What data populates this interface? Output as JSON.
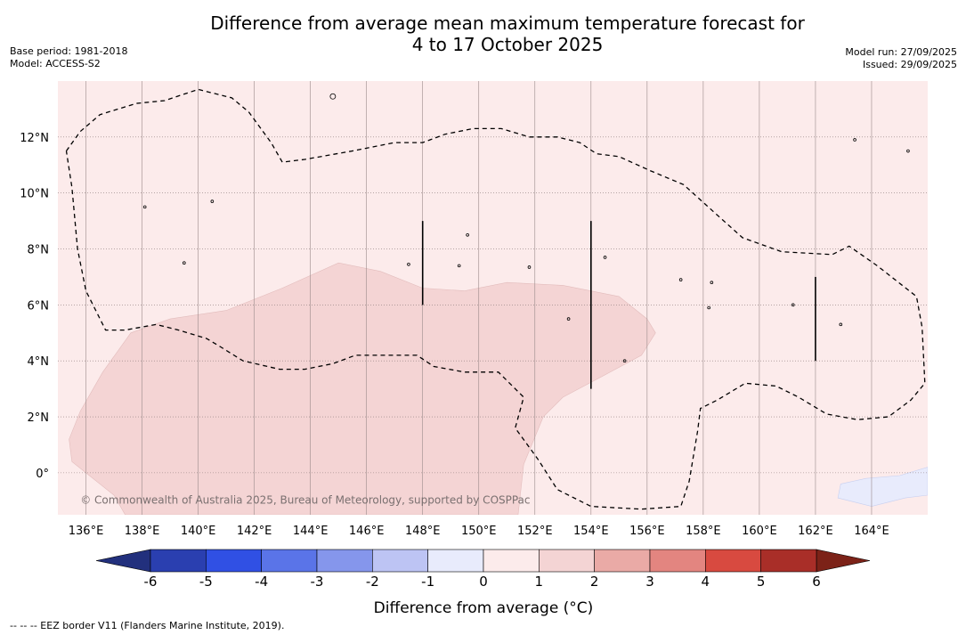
{
  "title_line1": "Difference from average mean maximum temperature forecast for",
  "title_line2": "4 to 17 October 2025",
  "base_period": "Base period: 1981-2018",
  "model": "Model: ACCESS-S2",
  "model_run": "Model run: 27/09/2025",
  "issued": "Issued: 29/09/2025",
  "copyright": "© Commonwealth of Australia 2025, Bureau of Meteorology, supported by COSPPac",
  "eez_note": "-- -- -- EEZ border V11 (Flanders Marine Institute, 2019).",
  "map": {
    "lon_range": [
      135,
      166
    ],
    "lat_range": [
      -1.5,
      14
    ],
    "lon_ticks": [
      136,
      138,
      140,
      142,
      144,
      146,
      148,
      150,
      152,
      154,
      156,
      158,
      160,
      162,
      164
    ],
    "lon_labels": [
      "136°E",
      "138°E",
      "140°E",
      "142°E",
      "144°E",
      "146°E",
      "148°E",
      "150°E",
      "152°E",
      "154°E",
      "156°E",
      "158°E",
      "160°E",
      "162°E",
      "164°E"
    ],
    "lat_ticks": [
      0,
      2,
      4,
      6,
      8,
      10,
      12
    ],
    "lat_labels": [
      "0°",
      "2°N",
      "4°N",
      "6°N",
      "8°N",
      "10°N",
      "12°N"
    ],
    "background_category": "0 to 1",
    "regions": [
      {
        "category": "1 to 2",
        "boundary": [
          [
            135.4,
            1.2
          ],
          [
            135.8,
            2.2
          ],
          [
            136.6,
            3.6
          ],
          [
            137.6,
            5.0
          ],
          [
            139,
            5.5
          ],
          [
            141,
            5.8
          ],
          [
            143,
            6.6
          ],
          [
            145,
            7.5
          ],
          [
            146.5,
            7.2
          ],
          [
            148,
            6.6
          ],
          [
            149.5,
            6.5
          ],
          [
            151,
            6.8
          ],
          [
            153,
            6.7
          ],
          [
            155,
            6.3
          ],
          [
            156,
            5.5
          ],
          [
            156.3,
            5.0
          ],
          [
            155.8,
            4.2
          ],
          [
            154.5,
            3.5
          ],
          [
            153,
            2.7
          ],
          [
            152.3,
            2.0
          ],
          [
            151.6,
            0.3
          ],
          [
            151.4,
            -1.5
          ],
          [
            137.4,
            -1.5
          ],
          [
            137,
            -0.8
          ],
          [
            135.5,
            0.4
          ]
        ]
      },
      {
        "category": "-1 to 0",
        "boundary": [
          [
            164,
            -1.2
          ],
          [
            165.2,
            -0.9
          ],
          [
            166,
            -0.8
          ],
          [
            166,
            0.2
          ],
          [
            165,
            -0.1
          ],
          [
            163.8,
            -0.2
          ],
          [
            162.9,
            -0.4
          ],
          [
            162.8,
            -0.9
          ]
        ]
      }
    ],
    "eez_lines": [
      [
        [
          135.3,
          11.5
        ],
        [
          135.8,
          12.2
        ],
        [
          136.5,
          12.8
        ],
        [
          137.8,
          13.2
        ],
        [
          138.8,
          13.3
        ],
        [
          140,
          13.7
        ],
        [
          141.2,
          13.4
        ],
        [
          141.8,
          12.9
        ],
        [
          142.6,
          11.8
        ],
        [
          143,
          11.1
        ],
        [
          143.8,
          11.2
        ],
        [
          145.5,
          11.5
        ],
        [
          147,
          11.8
        ],
        [
          148,
          11.8
        ],
        [
          148.8,
          12.1
        ],
        [
          149.8,
          12.3
        ],
        [
          150.8,
          12.3
        ],
        [
          151.8,
          12.0
        ],
        [
          152.8,
          12.0
        ],
        [
          153.6,
          11.8
        ],
        [
          154.2,
          11.4
        ],
        [
          155,
          11.3
        ],
        [
          156.1,
          10.8
        ],
        [
          157.3,
          10.3
        ],
        [
          158.4,
          9.3
        ],
        [
          159.4,
          8.4
        ],
        [
          160.8,
          7.9
        ],
        [
          162.6,
          7.8
        ],
        [
          163.2,
          8.1
        ],
        [
          164.2,
          7.4
        ],
        [
          165.6,
          6.3
        ],
        [
          165.8,
          5.2
        ],
        [
          165.9,
          3.2
        ],
        [
          165.4,
          2.6
        ],
        [
          164.6,
          2.0
        ],
        [
          163.5,
          1.9
        ],
        [
          162.4,
          2.1
        ],
        [
          161.4,
          2.7
        ],
        [
          160.6,
          3.1
        ],
        [
          159.5,
          3.2
        ],
        [
          158.5,
          2.6
        ],
        [
          157.9,
          2.3
        ],
        [
          157.8,
          1.5
        ],
        [
          157.5,
          -0.3
        ],
        [
          157.2,
          -1.2
        ],
        [
          155.8,
          -1.3
        ],
        [
          154,
          -1.2
        ],
        [
          152.8,
          -0.6
        ],
        [
          152.1,
          0.5
        ],
        [
          151.3,
          1.6
        ],
        [
          151.6,
          2.7
        ],
        [
          150.7,
          3.6
        ],
        [
          149.5,
          3.6
        ],
        [
          148.4,
          3.8
        ],
        [
          147.8,
          4.2
        ],
        [
          146.8,
          4.2
        ],
        [
          145.6,
          4.2
        ],
        [
          144.8,
          3.9
        ],
        [
          143.8,
          3.7
        ],
        [
          142.9,
          3.7
        ],
        [
          141.6,
          4.0
        ],
        [
          140.8,
          4.5
        ],
        [
          140.3,
          4.8
        ],
        [
          139.3,
          5.1
        ],
        [
          138.5,
          5.3
        ],
        [
          137.4,
          5.1
        ],
        [
          136.7,
          5.1
        ],
        [
          136,
          6.5
        ],
        [
          135.7,
          8.0
        ],
        [
          135.5,
          10.2
        ],
        [
          135.3,
          11.5
        ]
      ]
    ],
    "data_gap_lines": [
      [
        [
          148,
          6.0
        ],
        [
          148,
          9.0
        ]
      ],
      [
        [
          154,
          3.0
        ],
        [
          154,
          9.0
        ]
      ],
      [
        [
          162,
          4.0
        ],
        [
          162,
          7.0
        ]
      ]
    ],
    "islands": [
      [
        144.8,
        13.45
      ],
      [
        138.1,
        9.5
      ],
      [
        140.5,
        9.7
      ],
      [
        139.5,
        7.5
      ],
      [
        147.5,
        7.45
      ],
      [
        149.6,
        8.5
      ],
      [
        149.3,
        7.4
      ],
      [
        151.8,
        7.35
      ],
      [
        153.2,
        5.5
      ],
      [
        157.2,
        6.9
      ],
      [
        158.3,
        6.8
      ],
      [
        158.2,
        5.9
      ],
      [
        161.2,
        6.0
      ],
      [
        162.9,
        5.3
      ],
      [
        163.4,
        11.9
      ],
      [
        165.3,
        11.5
      ],
      [
        154.5,
        7.7
      ],
      [
        155.2,
        4.0
      ]
    ],
    "copyright_anchor": [
      135.8,
      -1.1
    ]
  },
  "colorbar": {
    "title": "Difference from average (°C)",
    "ticks": [
      "-6",
      "-5",
      "-4",
      "-3",
      "-2",
      "-1",
      "0",
      "1",
      "2",
      "3",
      "4",
      "5",
      "6"
    ],
    "colors": [
      "#2a3fb0",
      "#3050e4",
      "#5a74e8",
      "#8596ec",
      "#bdc4f4",
      "#e8ebfc",
      "#fcebeb",
      "#f4d4d4",
      "#eaaaa6",
      "#e38580",
      "#d84a40",
      "#a92e28"
    ],
    "under_color": "#22307d",
    "over_color": "#7c2218",
    "category_colors": {
      "0 to 1": "#fcebeb",
      "1 to 2": "#f4d4d4",
      "-1 to 0": "#e8ebfc"
    }
  }
}
